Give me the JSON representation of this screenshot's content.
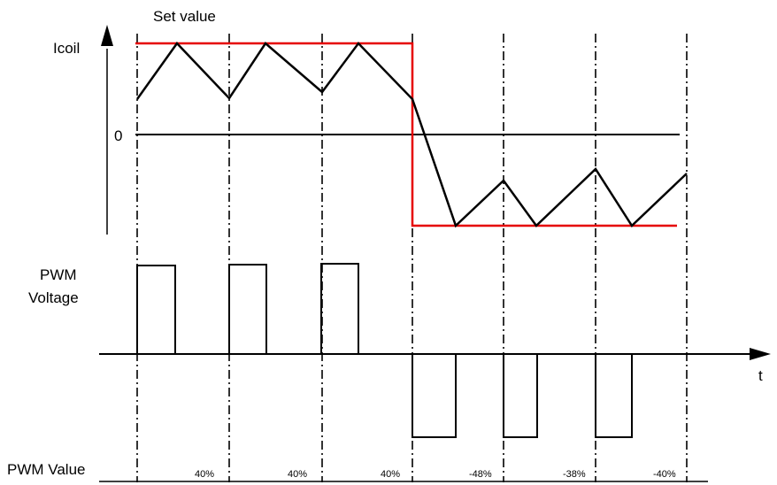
{
  "labels": {
    "set_value": "Set value",
    "icoil": "Icoil",
    "zero": "0",
    "pwm_voltage_line1": "PWM",
    "pwm_voltage_line2": "Voltage",
    "time_axis": "t",
    "pwm_value": "PWM Value"
  },
  "pwm_values": [
    "40%",
    "40%",
    "40%",
    "-48%",
    "-38%",
    "-40%"
  ],
  "colors": {
    "setpoint": "#e60000",
    "signal": "#000000"
  }
}
